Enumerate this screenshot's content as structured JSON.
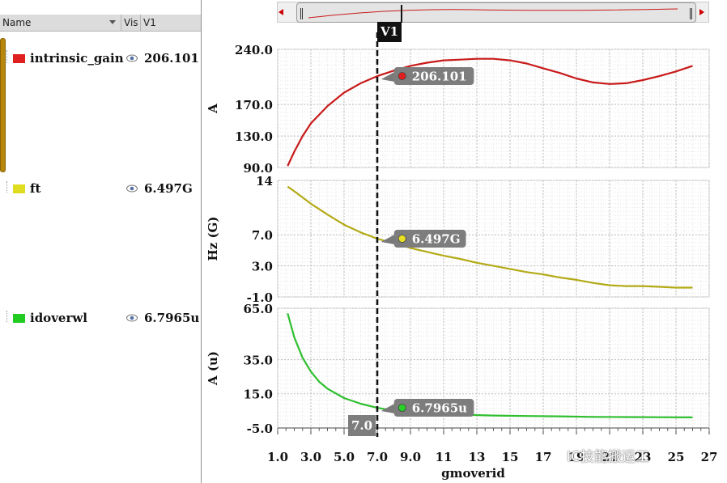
{
  "left_panel": {
    "columns": {
      "name": "Name",
      "vis": "Vis",
      "v1": "V1"
    },
    "signals": [
      {
        "name": "intrinsic_gain",
        "value": "206.101",
        "color": "#e02020"
      },
      {
        "name": "ft",
        "value": "6.497G",
        "color": "#e0dc20"
      },
      {
        "name": "idoverwl",
        "value": "6.7965u",
        "color": "#22cc22"
      }
    ]
  },
  "cursor": {
    "label": "V1",
    "x": 7.0,
    "x_label": "7.0"
  },
  "watermark": "IC技能搬运工",
  "chart_data": {
    "type": "line",
    "xlabel": "gmoverid",
    "x_ticks": [
      1.0,
      3.0,
      5.0,
      7.0,
      9.0,
      11,
      13,
      15,
      17,
      19,
      21,
      23,
      25,
      27
    ],
    "x_tick_labels": [
      "1.0",
      "3.0",
      "5.0",
      "7.0",
      "9.0",
      "11",
      "13",
      "15",
      "17",
      "19",
      "21",
      "23",
      "25",
      "27"
    ],
    "xlim": [
      1.0,
      27.0
    ],
    "grid": true,
    "panels": [
      {
        "ylabel": "A",
        "ylim": [
          90,
          240
        ],
        "y_ticks": [
          90,
          130,
          170,
          240
        ],
        "y_tick_labels": [
          "90.0",
          "130.0",
          "170.0",
          "240.0"
        ],
        "series": [
          {
            "name": "intrinsic_gain",
            "color": "#c81a1a",
            "x": [
              1.6,
              2.0,
              2.5,
              3.0,
              4.0,
              5.0,
              6.0,
              7.0,
              8.0,
              9.0,
              10.0,
              11.0,
              12.0,
              13.0,
              14.0,
              15.0,
              16.0,
              17.0,
              18.0,
              19.0,
              20.0,
              21.0,
              22.0,
              23.0,
              24.0,
              25.0,
              26.0
            ],
            "y": [
              92,
              110,
              130,
              146,
              168,
              185,
              197,
              206,
              213,
              219,
              223,
              226,
              227,
              228,
              228,
              226,
              222,
              216,
              210,
              203,
              198,
              196,
              197,
              201,
              206,
              212,
              219
            ]
          }
        ],
        "marker": {
          "x": 8.5,
          "y": 206.101,
          "label": "206.101"
        }
      },
      {
        "ylabel": "Hz (G)",
        "ylim": [
          -1,
          14
        ],
        "y_ticks": [
          -1,
          3,
          7,
          14
        ],
        "y_tick_labels": [
          "-1.0",
          "3.0",
          "7.0",
          "14"
        ],
        "series": [
          {
            "name": "ft",
            "color": "#b3aa16",
            "x": [
              1.6,
              2.0,
              3.0,
              4.0,
              5.0,
              6.0,
              7.0,
              8.0,
              9.0,
              10.0,
              11.0,
              12.0,
              13.0,
              14.0,
              15.0,
              16.0,
              17.0,
              18.0,
              19.0,
              20.0,
              21.0,
              22.0,
              23.0,
              24.0,
              25.0,
              26.0
            ],
            "y": [
              13.2,
              12.6,
              11.0,
              9.6,
              8.3,
              7.3,
              6.5,
              5.9,
              5.3,
              4.8,
              4.3,
              3.9,
              3.4,
              3.0,
              2.6,
              2.2,
              1.9,
              1.5,
              1.2,
              0.8,
              0.5,
              0.4,
              0.4,
              0.3,
              0.2,
              0.2
            ]
          }
        ],
        "marker": {
          "x": 8.5,
          "y": 6.497,
          "label": "6.497G"
        }
      },
      {
        "ylabel": "A (u)",
        "ylim": [
          -5,
          65
        ],
        "y_ticks": [
          -5,
          15,
          35,
          65
        ],
        "y_tick_labels": [
          "-5.0",
          "15.0",
          "35.0",
          "65.0"
        ],
        "series": [
          {
            "name": "idoverwl",
            "color": "#2fbf2f",
            "x": [
              1.6,
              2.0,
              2.5,
              3.0,
              3.5,
              4.0,
              5.0,
              6.0,
              7.0,
              8.0,
              9.0,
              10.0,
              12.0,
              14.0,
              16.0,
              18.0,
              20.0,
              22.0,
              24.0,
              26.0
            ],
            "y": [
              62,
              48,
              36,
              28,
              22,
              18,
              12.5,
              9.2,
              6.8,
              5.2,
              4.2,
              3.5,
              2.8,
              2.3,
              2.0,
              1.8,
              1.5,
              1.4,
              1.3,
              1.2
            ]
          }
        ],
        "marker": {
          "x": 8.5,
          "y": 6.7965,
          "label": "6.7965u"
        }
      }
    ]
  }
}
